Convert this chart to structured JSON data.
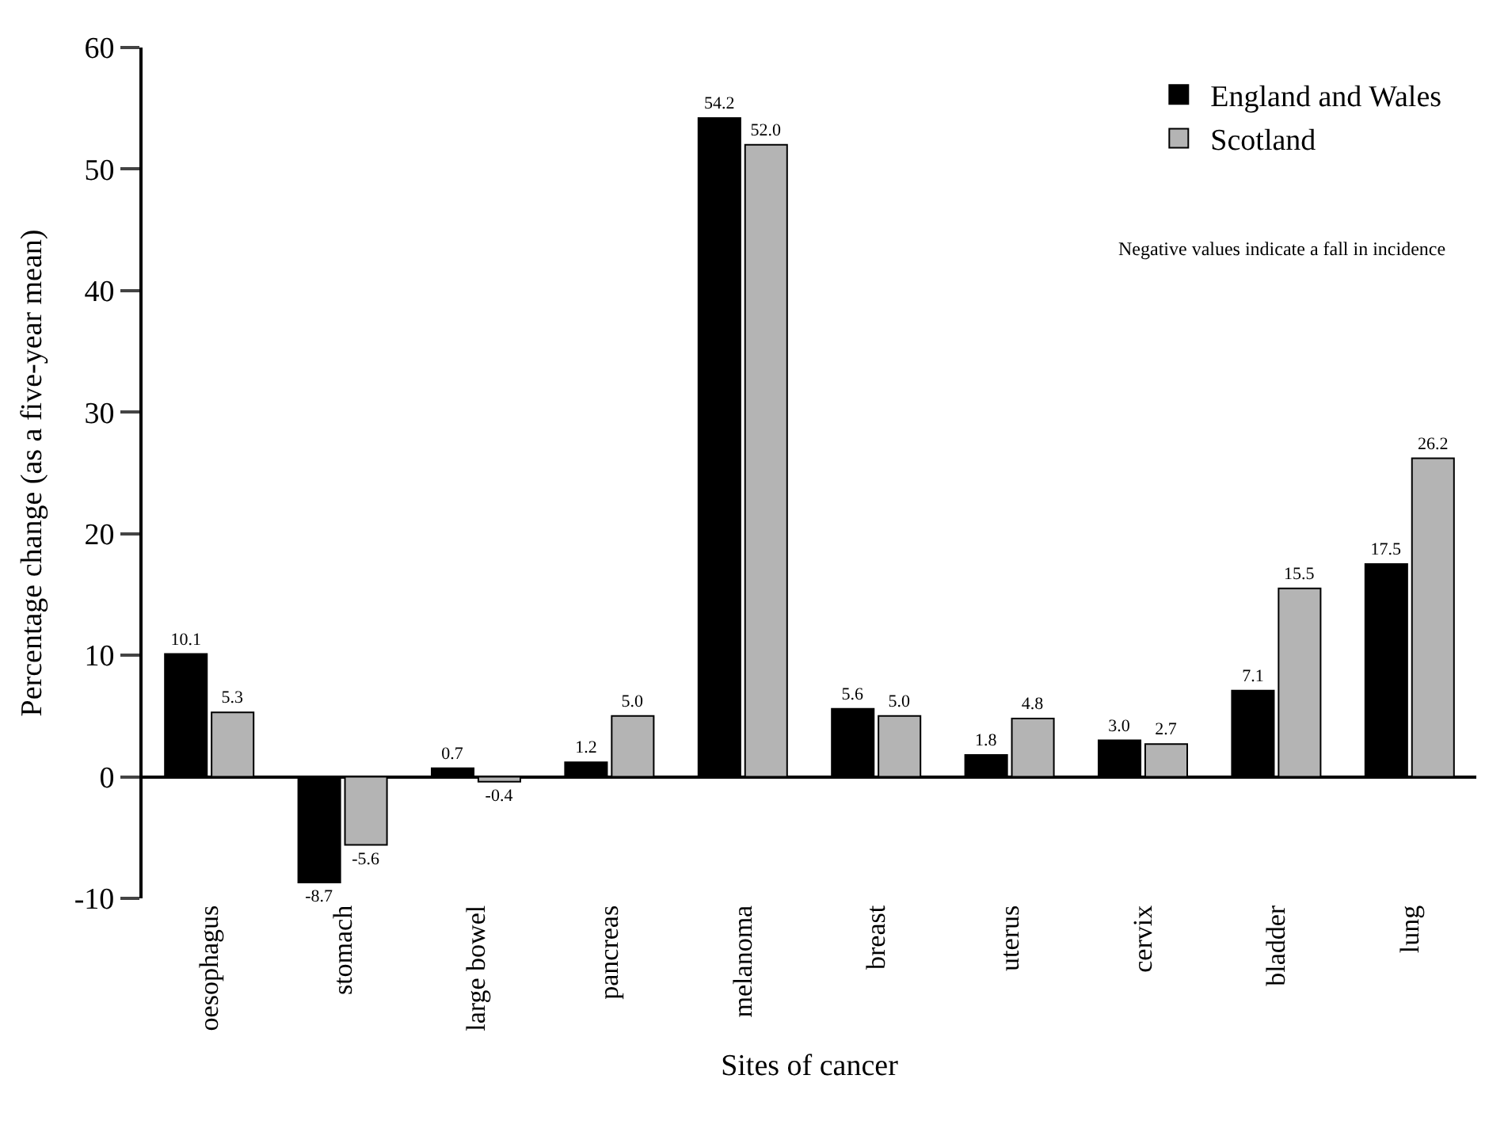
{
  "chart_data": {
    "type": "bar",
    "xlabel": "Sites of cancer",
    "ylabel": "Percentage change (as a five-year mean)",
    "categories": [
      "oesophagus",
      "stomach",
      "large bowel",
      "pancreas",
      "melanoma",
      "breast",
      "uterus",
      "cervix",
      "bladder",
      "lung"
    ],
    "series": [
      {
        "name": "England and Wales",
        "color": "#000000",
        "values": [
          10.1,
          -8.7,
          0.7,
          1.2,
          54.2,
          5.6,
          1.8,
          3.0,
          7.1,
          17.5
        ],
        "value_labels": [
          "10.1",
          "-8.7",
          "0.7",
          "1.2",
          "54.2",
          "5.6",
          "1.8",
          "3.0",
          "7.1",
          "17.5"
        ]
      },
      {
        "name": "Scotland",
        "color": "#b4b4b4",
        "values": [
          5.3,
          -5.6,
          -0.4,
          5.0,
          52.0,
          5.0,
          4.8,
          2.7,
          15.5,
          26.2
        ],
        "value_labels": [
          "5.3",
          "-5.6",
          "-0.4",
          "5.0",
          "52.0",
          "5.0",
          "4.8",
          "2.7",
          "15.5",
          "26.2"
        ]
      }
    ],
    "ylim": [
      -10,
      60
    ],
    "yticks": [
      -10,
      0,
      10,
      20,
      30,
      40,
      50,
      60
    ],
    "annotations": [
      "Negative values indicate a fall in incidence"
    ],
    "legend": "top right"
  }
}
